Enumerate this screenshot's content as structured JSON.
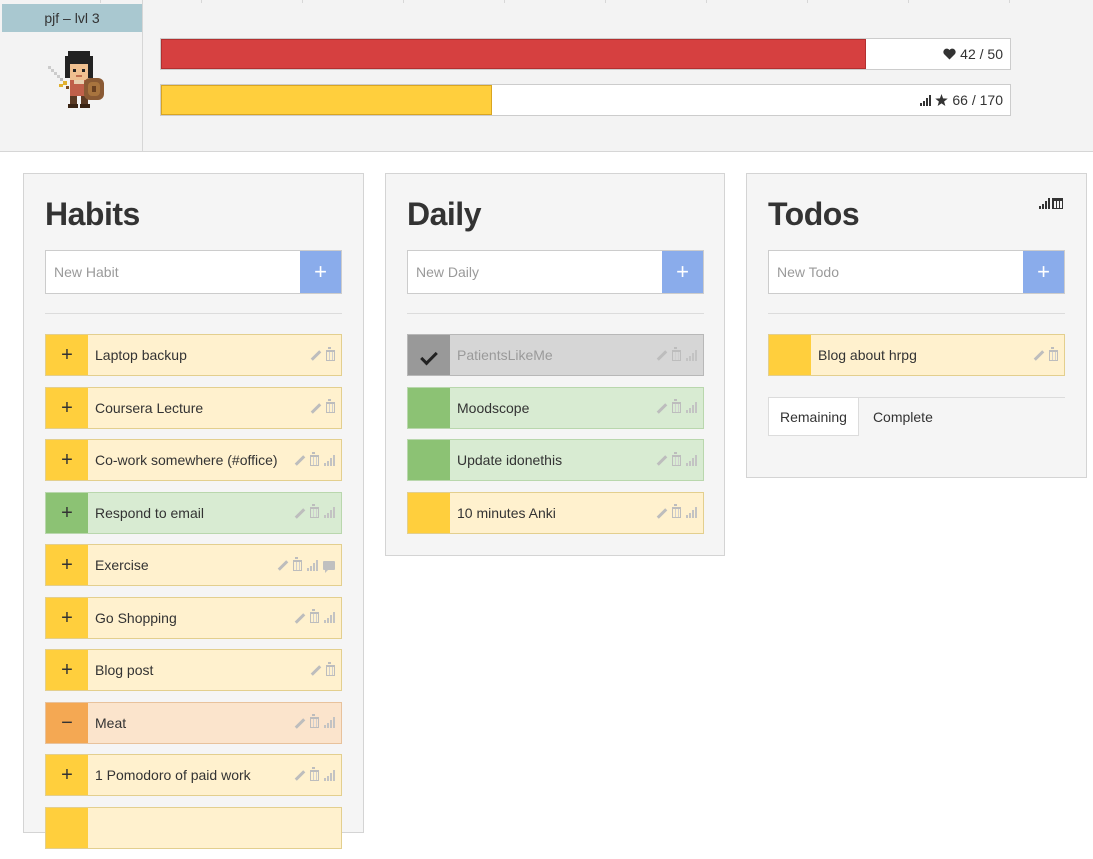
{
  "header": {
    "name_level": "pjf – lvl 3",
    "hp": {
      "label": "42 / 50",
      "fraction": 0.83,
      "icon": "heart-icon"
    },
    "xp": {
      "label": "66 / 170",
      "fraction": 0.39,
      "icon": "star-icon"
    }
  },
  "habits": {
    "title": "Habits",
    "placeholder": "New Habit",
    "add_label": "+",
    "items": [
      {
        "label": "Laptop backup",
        "btn": "+",
        "color": "yellow"
      },
      {
        "label": "Coursera Lecture",
        "btn": "+",
        "color": "yellow"
      },
      {
        "label": "Co-work somewhere (#office)",
        "btn": "+",
        "color": "yellow"
      },
      {
        "label": "Respond to email",
        "btn": "+",
        "color": "green"
      },
      {
        "label": "Exercise",
        "btn": "+",
        "color": "yellow"
      },
      {
        "label": "Go Shopping",
        "btn": "+",
        "color": "yellow"
      },
      {
        "label": "Blog post",
        "btn": "+",
        "color": "yellow"
      },
      {
        "label": "Meat",
        "btn": "−",
        "color": "orange"
      },
      {
        "label": "1 Pomodoro of paid work",
        "btn": "+",
        "color": "yellow"
      }
    ]
  },
  "daily": {
    "title": "Daily",
    "placeholder": "New Daily",
    "add_label": "+",
    "items": [
      {
        "label": "PatientsLikeMe",
        "color": "gray",
        "checked": true
      },
      {
        "label": "Moodscope",
        "color": "green",
        "checked": false
      },
      {
        "label": "Update idonethis",
        "color": "green",
        "checked": false
      },
      {
        "label": "10 minutes Anki",
        "color": "yellow",
        "checked": false
      }
    ]
  },
  "todos": {
    "title": "Todos",
    "placeholder": "New Todo",
    "add_label": "+",
    "items": [
      {
        "label": "Blog about hrpg",
        "color": "yellow"
      }
    ],
    "tabs": [
      "Remaining",
      "Complete"
    ],
    "active_tab": "Remaining"
  },
  "colors": {
    "hp": "#d64040",
    "xp": "#ffcf3d",
    "add_button": "#8aaceb",
    "yellow": "#ffcf3d",
    "green": "#8cc274",
    "orange": "#f4a853",
    "gray": "#999999"
  }
}
